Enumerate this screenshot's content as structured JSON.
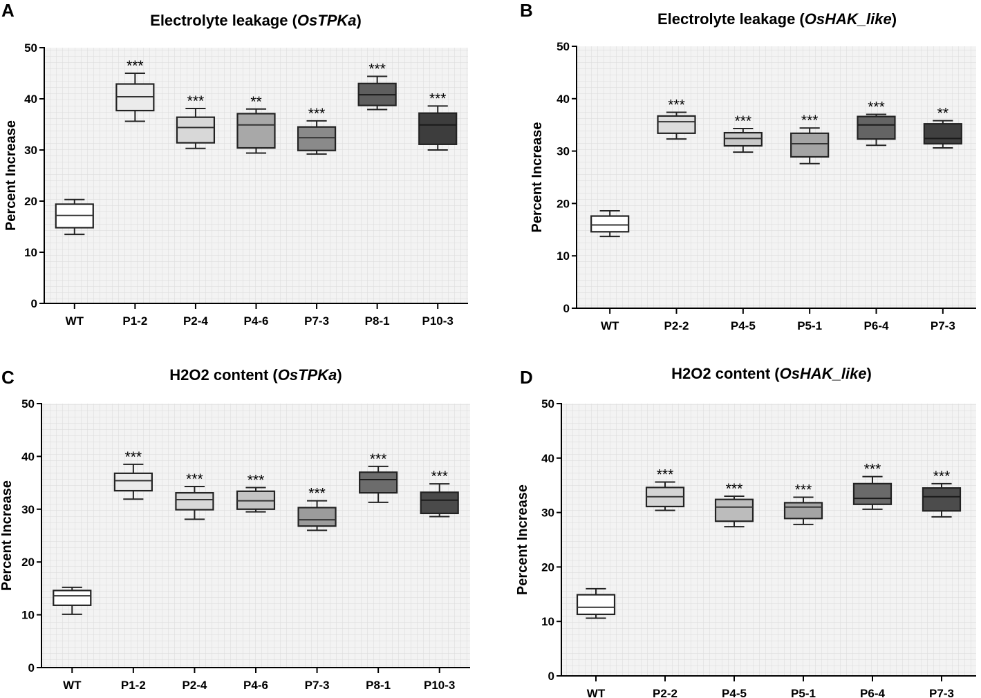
{
  "chart_data": [
    {
      "panel": "A",
      "type": "box",
      "title": "Electrolyte leakage (",
      "title_italic": "OsTPKa",
      "title_end": ")",
      "ylabel": "Percent Increase",
      "xlabel": "",
      "ylim": [
        0,
        50
      ],
      "yticks": [
        0,
        10,
        20,
        30,
        40,
        50
      ],
      "grid": true,
      "categories": [
        "WT",
        "P1-2",
        "P2-4",
        "P4-6",
        "P7-3",
        "P8-1",
        "P10-3"
      ],
      "boxes": [
        {
          "min": 13.5,
          "q1": 14.8,
          "median": 17.2,
          "q3": 19.4,
          "max": 20.3
        },
        {
          "min": 35.6,
          "q1": 37.7,
          "median": 40.4,
          "q3": 42.9,
          "max": 45.0
        },
        {
          "min": 30.3,
          "q1": 31.4,
          "median": 34.4,
          "q3": 36.4,
          "max": 38.1
        },
        {
          "min": 29.4,
          "q1": 30.4,
          "median": 34.9,
          "q3": 37.1,
          "max": 38.0
        },
        {
          "min": 29.2,
          "q1": 29.9,
          "median": 32.4,
          "q3": 34.5,
          "max": 35.7
        },
        {
          "min": 37.9,
          "q1": 38.7,
          "median": 40.8,
          "q3": 43.0,
          "max": 44.4
        },
        {
          "min": 30.0,
          "q1": 31.1,
          "median": 34.9,
          "q3": 37.2,
          "max": 38.6
        }
      ],
      "significance": [
        "",
        "***",
        "***",
        "**",
        "***",
        "***",
        "***"
      ],
      "fills": [
        "#ffffff",
        "#ebebeb",
        "#d8d8d8",
        "#a8a8a8",
        "#8a8a8a",
        "#5e5e5e",
        "#3d3d3d"
      ]
    },
    {
      "panel": "B",
      "type": "box",
      "title": "Electrolyte leakage (",
      "title_italic": "OsHAK_like",
      "title_end": ")",
      "ylabel": "Percent Increase",
      "xlabel": "",
      "ylim": [
        0,
        50
      ],
      "yticks": [
        0,
        10,
        20,
        30,
        40,
        50
      ],
      "grid": true,
      "categories": [
        "WT",
        "P2-2",
        "P4-5",
        "P5-1",
        "P6-4",
        "P7-3"
      ],
      "boxes": [
        {
          "min": 13.7,
          "q1": 14.6,
          "median": 15.9,
          "q3": 17.6,
          "max": 18.6
        },
        {
          "min": 32.3,
          "q1": 33.4,
          "median": 35.6,
          "q3": 36.7,
          "max": 37.4
        },
        {
          "min": 29.8,
          "q1": 31.0,
          "median": 32.4,
          "q3": 33.5,
          "max": 34.3
        },
        {
          "min": 27.6,
          "q1": 28.9,
          "median": 31.4,
          "q3": 33.4,
          "max": 34.4
        },
        {
          "min": 31.1,
          "q1": 32.3,
          "median": 35.0,
          "q3": 36.6,
          "max": 37.0
        },
        {
          "min": 30.6,
          "q1": 31.4,
          "median": 32.4,
          "q3": 35.2,
          "max": 35.8
        }
      ],
      "significance": [
        "",
        "***",
        "***",
        "***",
        "***",
        "**"
      ],
      "fills": [
        "#ffffff",
        "#dcdcdc",
        "#c8c8c8",
        "#a4a4a4",
        "#646464",
        "#404040"
      ]
    },
    {
      "panel": "C",
      "type": "box",
      "title": "H2O2 content (",
      "title_italic": "OsTPKa",
      "title_end": ")",
      "ylabel": "Percent Increase",
      "xlabel": "",
      "ylim": [
        0,
        50
      ],
      "yticks": [
        0,
        10,
        20,
        30,
        40,
        50
      ],
      "grid": true,
      "categories": [
        "WT",
        "P1-2",
        "P2-4",
        "P4-6",
        "P7-3",
        "P8-1",
        "P10-3"
      ],
      "boxes": [
        {
          "min": 10.1,
          "q1": 11.8,
          "median": 13.6,
          "q3": 14.6,
          "max": 15.2
        },
        {
          "min": 31.9,
          "q1": 33.5,
          "median": 35.4,
          "q3": 36.8,
          "max": 38.5
        },
        {
          "min": 28.1,
          "q1": 29.9,
          "median": 31.8,
          "q3": 33.1,
          "max": 34.3
        },
        {
          "min": 29.5,
          "q1": 30.0,
          "median": 31.6,
          "q3": 33.4,
          "max": 34.1
        },
        {
          "min": 26.0,
          "q1": 26.8,
          "median": 28.0,
          "q3": 30.3,
          "max": 31.6
        },
        {
          "min": 31.3,
          "q1": 33.1,
          "median": 35.6,
          "q3": 37.0,
          "max": 38.1
        },
        {
          "min": 28.6,
          "q1": 29.2,
          "median": 31.7,
          "q3": 33.2,
          "max": 34.8
        }
      ],
      "significance": [
        "",
        "***",
        "***",
        "***",
        "***",
        "***",
        "***"
      ],
      "fills": [
        "#ffffff",
        "#ebebeb",
        "#d8d8d8",
        "#c4c4c4",
        "#9c9c9c",
        "#6c6c6c",
        "#4a4a4a"
      ]
    },
    {
      "panel": "D",
      "type": "box",
      "title": "H2O2 content (",
      "title_italic": "OsHAK_like",
      "title_end": ")",
      "ylabel": "Percent Increase",
      "xlabel": "",
      "ylim": [
        0,
        50
      ],
      "yticks": [
        0,
        10,
        20,
        30,
        40,
        50
      ],
      "grid": true,
      "categories": [
        "WT",
        "P2-2",
        "P4-5",
        "P5-1",
        "P6-4",
        "P7-3"
      ],
      "boxes": [
        {
          "min": 10.6,
          "q1": 11.3,
          "median": 12.6,
          "q3": 14.9,
          "max": 16.0
        },
        {
          "min": 30.4,
          "q1": 31.1,
          "median": 32.9,
          "q3": 34.6,
          "max": 35.6
        },
        {
          "min": 27.4,
          "q1": 28.4,
          "median": 31.0,
          "q3": 32.4,
          "max": 33.0
        },
        {
          "min": 27.8,
          "q1": 28.9,
          "median": 31.0,
          "q3": 31.8,
          "max": 32.8
        },
        {
          "min": 30.6,
          "q1": 31.5,
          "median": 32.6,
          "q3": 35.3,
          "max": 36.6
        },
        {
          "min": 29.2,
          "q1": 30.3,
          "median": 32.9,
          "q3": 34.5,
          "max": 35.3
        }
      ],
      "significance": [
        "",
        "***",
        "***",
        "***",
        "***",
        "***"
      ],
      "fills": [
        "#ffffff",
        "#d4d4d4",
        "#bcbcbc",
        "#a4a4a4",
        "#6a6a6a",
        "#4c4c4c"
      ]
    }
  ]
}
